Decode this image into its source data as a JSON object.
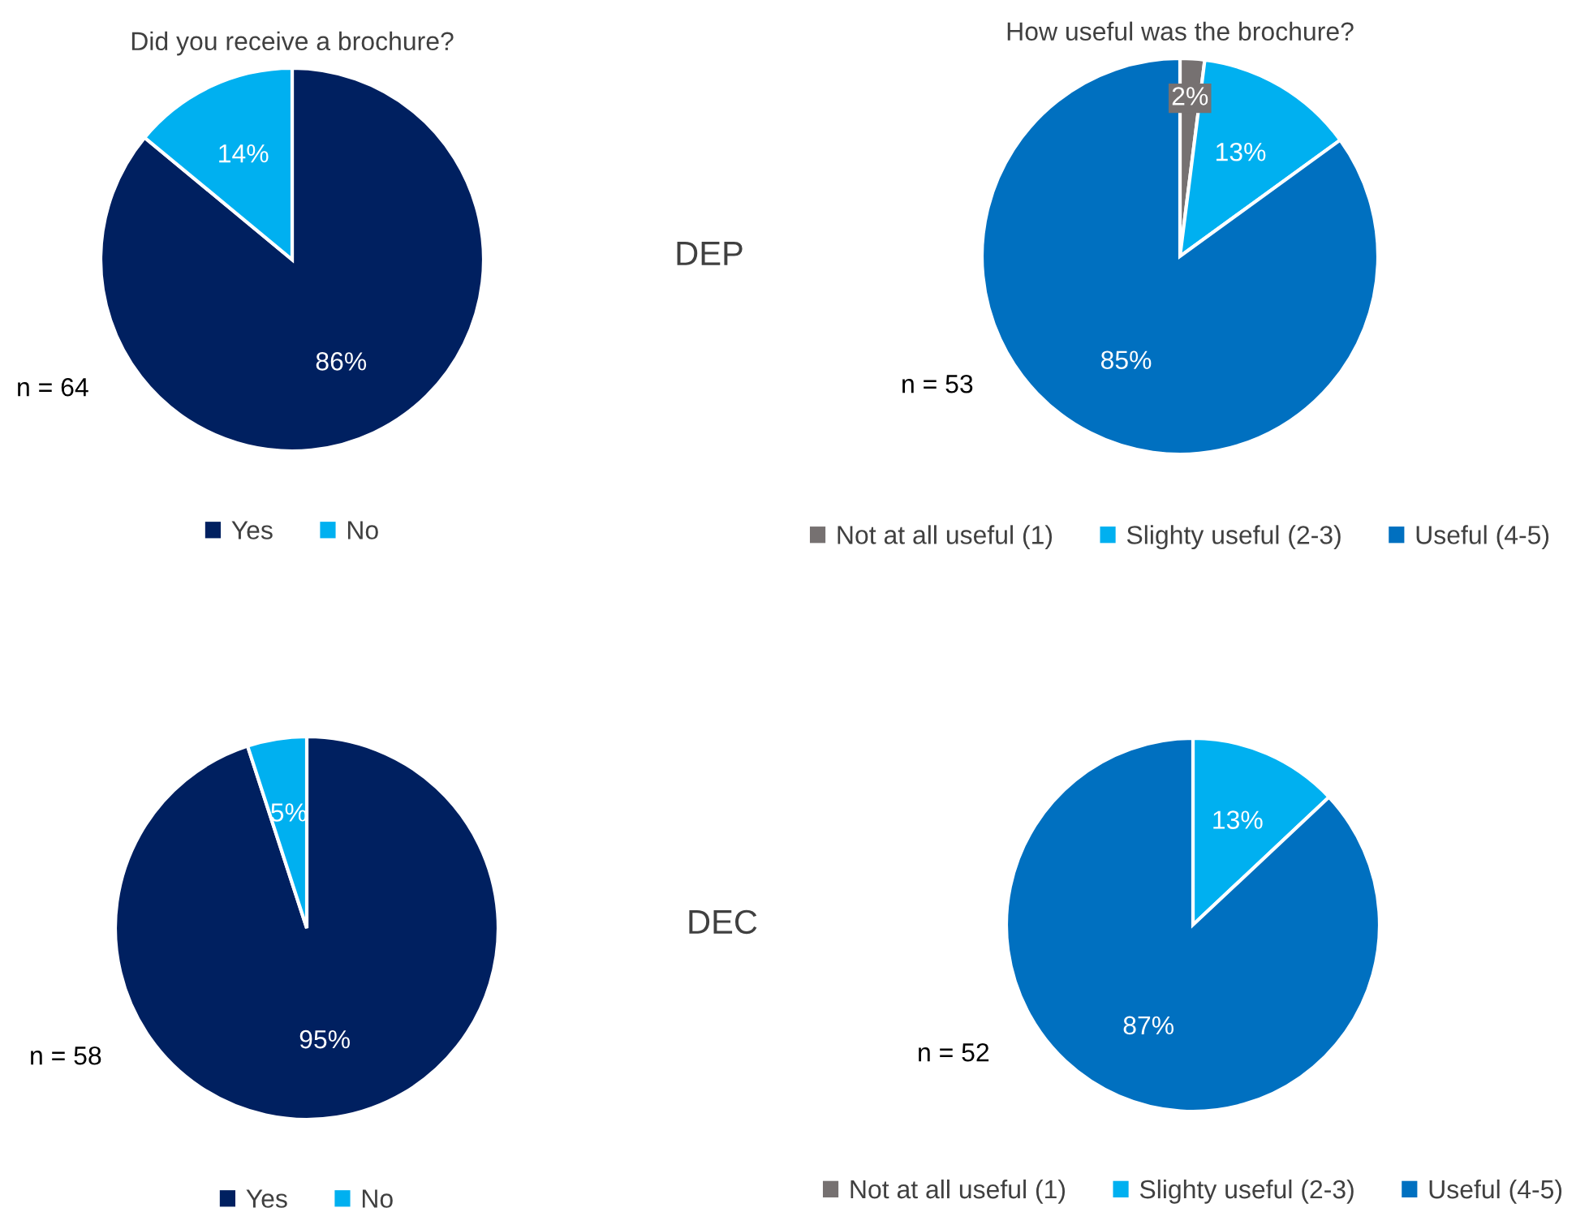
{
  "chart_data": [
    {
      "type": "pie",
      "title": "Did you receive a brochure?",
      "categories": [
        "Yes",
        "No"
      ],
      "values": [
        86,
        14
      ],
      "colors": [
        "#002060",
        "#00b0f0"
      ],
      "value_labels": [
        "86%",
        "14%"
      ],
      "legend": "bottom",
      "annotations": [
        "n = 64"
      ]
    },
    {
      "type": "pie",
      "title": "How useful was the brochure?",
      "categories": [
        "Not at all useful (1)",
        "Slighty useful (2-3)",
        "Useful (4-5)"
      ],
      "values": [
        2,
        13,
        85
      ],
      "colors": [
        "#767171",
        "#00b0f0",
        "#0070c0"
      ],
      "value_labels": [
        "2%",
        "13%",
        "85%"
      ],
      "legend": "bottom",
      "annotations": [
        "n = 53",
        "DEP"
      ]
    },
    {
      "type": "pie",
      "categories": [
        "Yes",
        "No"
      ],
      "values": [
        95,
        5
      ],
      "colors": [
        "#002060",
        "#00b0f0"
      ],
      "value_labels": [
        "95%",
        "5%"
      ],
      "legend": "bottom",
      "annotations": [
        "n = 58"
      ]
    },
    {
      "type": "pie",
      "categories": [
        "Not at all useful (1)",
        "Slighty useful (2-3)",
        "Useful (4-5)"
      ],
      "values": [
        0,
        13,
        87
      ],
      "colors": [
        "#767171",
        "#00b0f0",
        "#0070c0"
      ],
      "value_labels": [
        null,
        "13%",
        "87%"
      ],
      "legend": "bottom",
      "annotations": [
        "n = 52",
        "DEC"
      ]
    }
  ]
}
